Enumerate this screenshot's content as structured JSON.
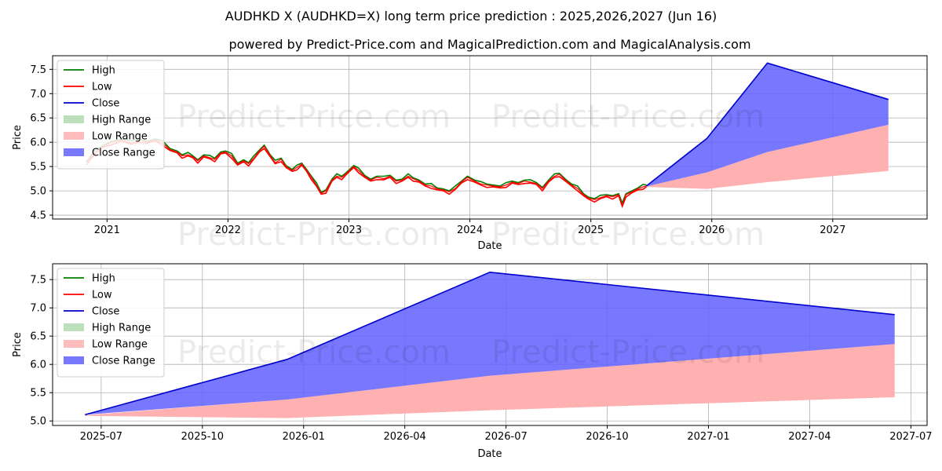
{
  "figure": {
    "title": "AUDHKD X (AUDHKD=X) long term price prediction : 2025,2026,2027 (Jun 16)",
    "subtitle": "powered by Predict-Price.com and MagicalPrediction.com and MagicalAnalysis.com",
    "watermark": "Predict-Price.com"
  },
  "colors": {
    "high": "#008000",
    "low": "#ff0000",
    "close": "#0000cd",
    "high_range": "#90cc90",
    "low_range": "#ffb0b0",
    "close_range": "#6060ff",
    "grid": "#b0b0b0"
  },
  "chart_data": [
    {
      "type": "line",
      "id": "long-term",
      "xlabel": "Date",
      "ylabel": "Price",
      "xlim": [
        2020.55,
        2027.78
      ],
      "ylim": [
        4.42,
        7.78
      ],
      "x_ticks": [
        {
          "value": 2021,
          "label": "2021"
        },
        {
          "value": 2022,
          "label": "2022"
        },
        {
          "value": 2023,
          "label": "2023"
        },
        {
          "value": 2024,
          "label": "2024"
        },
        {
          "value": 2025,
          "label": "2025"
        },
        {
          "value": 2026,
          "label": "2026"
        },
        {
          "value": 2027,
          "label": "2027"
        }
      ],
      "y_ticks": [
        {
          "value": 4.5,
          "label": "4.5"
        },
        {
          "value": 5.0,
          "label": "5.0"
        },
        {
          "value": 5.5,
          "label": "5.5"
        },
        {
          "value": 6.0,
          "label": "6.0"
        },
        {
          "value": 6.5,
          "label": "6.5"
        },
        {
          "value": 7.0,
          "label": "7.0"
        },
        {
          "value": 7.5,
          "label": "7.5"
        }
      ],
      "legend": {
        "position": "top-left",
        "entries": [
          {
            "key": "high",
            "label": "High",
            "kind": "line"
          },
          {
            "key": "low",
            "label": "Low",
            "kind": "line"
          },
          {
            "key": "close",
            "label": "Close",
            "kind": "line"
          },
          {
            "key": "high_range",
            "label": "High Range",
            "kind": "patch"
          },
          {
            "key": "low_range",
            "label": "Low Range",
            "kind": "patch"
          },
          {
            "key": "close_range",
            "label": "Close Range",
            "kind": "patch"
          }
        ]
      },
      "history_close": [
        [
          2020.83,
          5.58
        ],
        [
          2020.9,
          5.78
        ],
        [
          2020.97,
          5.92
        ],
        [
          2021.04,
          6.0
        ],
        [
          2021.12,
          6.04
        ],
        [
          2021.2,
          5.98
        ],
        [
          2021.27,
          6.05
        ],
        [
          2021.33,
          6.0
        ],
        [
          2021.4,
          6.05
        ],
        [
          2021.46,
          5.98
        ],
        [
          2021.52,
          5.85
        ],
        [
          2021.58,
          5.8
        ],
        [
          2021.62,
          5.72
        ],
        [
          2021.67,
          5.74
        ],
        [
          2021.71,
          5.7
        ],
        [
          2021.75,
          5.62
        ],
        [
          2021.8,
          5.72
        ],
        [
          2021.85,
          5.68
        ],
        [
          2021.89,
          5.65
        ],
        [
          2021.94,
          5.78
        ],
        [
          2021.98,
          5.8
        ],
        [
          2022.03,
          5.72
        ],
        [
          2022.08,
          5.55
        ],
        [
          2022.13,
          5.62
        ],
        [
          2022.17,
          5.56
        ],
        [
          2022.21,
          5.66
        ],
        [
          2022.26,
          5.82
        ],
        [
          2022.3,
          5.92
        ],
        [
          2022.35,
          5.72
        ],
        [
          2022.39,
          5.58
        ],
        [
          2022.44,
          5.65
        ],
        [
          2022.48,
          5.5
        ],
        [
          2022.53,
          5.42
        ],
        [
          2022.57,
          5.48
        ],
        [
          2022.61,
          5.55
        ],
        [
          2022.65,
          5.42
        ],
        [
          2022.69,
          5.28
        ],
        [
          2022.73,
          5.12
        ],
        [
          2022.77,
          4.95
        ],
        [
          2022.81,
          5.0
        ],
        [
          2022.86,
          5.22
        ],
        [
          2022.9,
          5.3
        ],
        [
          2022.94,
          5.28
        ],
        [
          2022.98,
          5.36
        ],
        [
          2023.04,
          5.5
        ],
        [
          2023.08,
          5.42
        ],
        [
          2023.13,
          5.3
        ],
        [
          2023.18,
          5.22
        ],
        [
          2023.23,
          5.28
        ],
        [
          2023.29,
          5.25
        ],
        [
          2023.34,
          5.3
        ],
        [
          2023.39,
          5.2
        ],
        [
          2023.44,
          5.22
        ],
        [
          2023.49,
          5.3
        ],
        [
          2023.53,
          5.25
        ],
        [
          2023.58,
          5.2
        ],
        [
          2023.63,
          5.12
        ],
        [
          2023.68,
          5.1
        ],
        [
          2023.73,
          5.04
        ],
        [
          2023.78,
          5.02
        ],
        [
          2023.83,
          4.98
        ],
        [
          2023.88,
          5.05
        ],
        [
          2023.93,
          5.18
        ],
        [
          2023.98,
          5.28
        ],
        [
          2024.04,
          5.2
        ],
        [
          2024.09,
          5.14
        ],
        [
          2024.14,
          5.12
        ],
        [
          2024.19,
          5.1
        ],
        [
          2024.25,
          5.08
        ],
        [
          2024.3,
          5.12
        ],
        [
          2024.35,
          5.18
        ],
        [
          2024.4,
          5.15
        ],
        [
          2024.45,
          5.2
        ],
        [
          2024.5,
          5.18
        ],
        [
          2024.55,
          5.15
        ],
        [
          2024.6,
          5.05
        ],
        [
          2024.65,
          5.2
        ],
        [
          2024.7,
          5.3
        ],
        [
          2024.74,
          5.34
        ],
        [
          2024.79,
          5.22
        ],
        [
          2024.84,
          5.12
        ],
        [
          2024.89,
          5.05
        ],
        [
          2024.94,
          4.92
        ],
        [
          2024.98,
          4.85
        ],
        [
          2025.03,
          4.82
        ],
        [
          2025.08,
          4.86
        ],
        [
          2025.13,
          4.9
        ],
        [
          2025.18,
          4.88
        ],
        [
          2025.23,
          4.92
        ],
        [
          2025.26,
          4.7
        ],
        [
          2025.29,
          4.92
        ],
        [
          2025.34,
          4.98
        ],
        [
          2025.39,
          5.04
        ],
        [
          2025.43,
          5.08
        ],
        [
          2025.46,
          5.1
        ]
      ],
      "forecast": {
        "close": [
          [
            2025.46,
            5.1
          ],
          [
            2025.96,
            6.08
          ],
          [
            2026.46,
            7.63
          ],
          [
            2027.46,
            6.88
          ]
        ],
        "close_range_lower": [
          [
            2025.46,
            5.09
          ],
          [
            2025.96,
            5.38
          ],
          [
            2026.46,
            5.8
          ],
          [
            2027.46,
            6.36
          ]
        ],
        "low_range_upper": [
          [
            2025.46,
            5.09
          ],
          [
            2025.96,
            5.38
          ],
          [
            2026.46,
            5.8
          ],
          [
            2027.46,
            6.36
          ]
        ],
        "low_range_lower": [
          [
            2025.46,
            5.08
          ],
          [
            2025.96,
            5.04
          ],
          [
            2026.46,
            5.18
          ],
          [
            2027.46,
            5.41
          ]
        ]
      }
    },
    {
      "type": "line",
      "id": "forecast-zoom",
      "xlabel": "Date",
      "ylabel": "Price",
      "xlim": [
        2025.38,
        2027.54
      ],
      "ylim": [
        4.92,
        7.78
      ],
      "x_ticks": [
        {
          "value": 2025.5,
          "label": "2025-07"
        },
        {
          "value": 2025.75,
          "label": "2025-10"
        },
        {
          "value": 2026.0,
          "label": "2026-01"
        },
        {
          "value": 2026.25,
          "label": "2026-04"
        },
        {
          "value": 2026.5,
          "label": "2026-07"
        },
        {
          "value": 2026.75,
          "label": "2026-10"
        },
        {
          "value": 2027.0,
          "label": "2027-01"
        },
        {
          "value": 2027.25,
          "label": "2027-04"
        },
        {
          "value": 2027.5,
          "label": "2027-07"
        }
      ],
      "y_ticks": [
        {
          "value": 5.0,
          "label": "5.0"
        },
        {
          "value": 5.5,
          "label": "5.5"
        },
        {
          "value": 6.0,
          "label": "6.0"
        },
        {
          "value": 6.5,
          "label": "6.5"
        },
        {
          "value": 7.0,
          "label": "7.0"
        },
        {
          "value": 7.5,
          "label": "7.5"
        }
      ],
      "legend": {
        "position": "top-left",
        "entries": [
          {
            "key": "high",
            "label": "High",
            "kind": "line"
          },
          {
            "key": "low",
            "label": "Low",
            "kind": "line"
          },
          {
            "key": "close",
            "label": "Close",
            "kind": "line"
          },
          {
            "key": "high_range",
            "label": "High Range",
            "kind": "patch"
          },
          {
            "key": "low_range",
            "label": "Low Range",
            "kind": "patch"
          },
          {
            "key": "close_range",
            "label": "Close Range",
            "kind": "patch"
          }
        ]
      },
      "forecast": {
        "close": [
          [
            2025.46,
            5.11
          ],
          [
            2025.96,
            6.09
          ],
          [
            2026.46,
            7.63
          ],
          [
            2027.46,
            6.88
          ]
        ],
        "close_range_lower": [
          [
            2025.46,
            5.11
          ],
          [
            2025.96,
            5.38
          ],
          [
            2026.46,
            5.8
          ],
          [
            2027.46,
            6.36
          ]
        ],
        "low_range_upper": [
          [
            2025.46,
            5.1
          ],
          [
            2025.96,
            5.38
          ],
          [
            2026.46,
            5.8
          ],
          [
            2027.46,
            6.36
          ]
        ],
        "low_range_lower": [
          [
            2025.46,
            5.09
          ],
          [
            2025.96,
            5.05
          ],
          [
            2026.46,
            5.19
          ],
          [
            2027.46,
            5.42
          ]
        ]
      }
    }
  ]
}
